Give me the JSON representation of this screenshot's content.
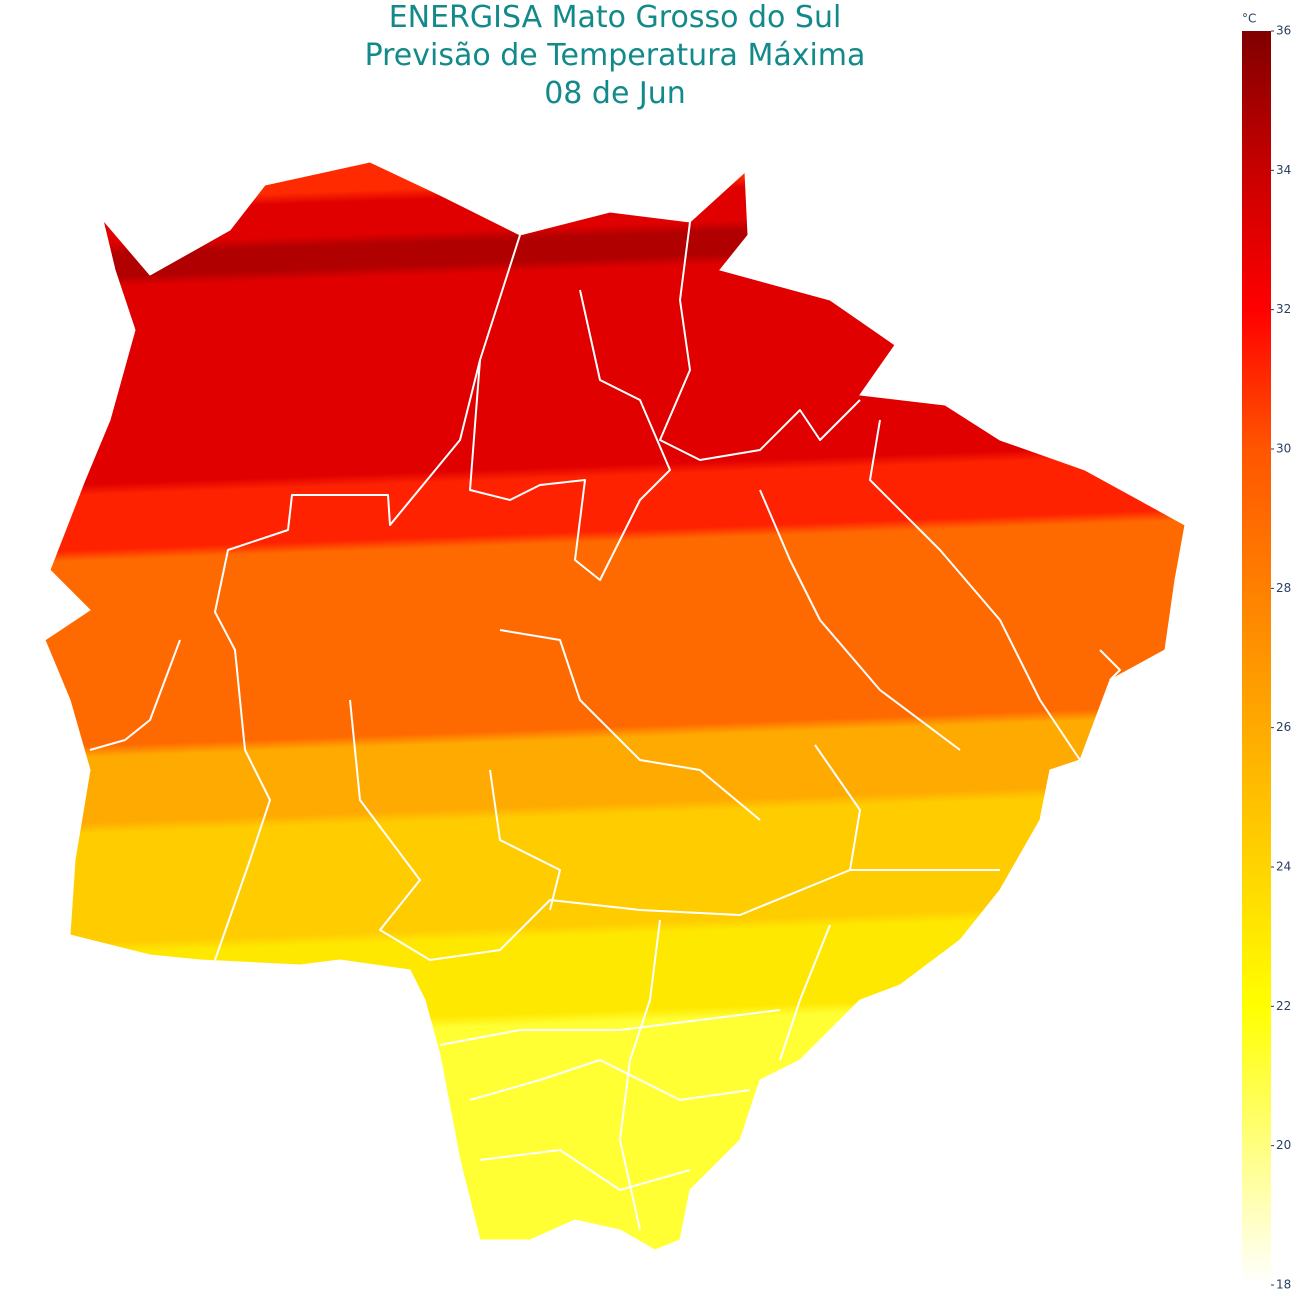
{
  "header": {
    "title_lines": [
      "ENERGISA Mato Grosso do Sul",
      "Previsão de Temperatura Máxima",
      "08 de Jun"
    ]
  },
  "colorbar": {
    "unit": "°C",
    "range": [
      18,
      36
    ],
    "ticks": [
      18,
      20,
      22,
      24,
      26,
      28,
      30,
      32,
      34,
      36
    ],
    "colorscale": [
      {
        "value": 18,
        "color": "#ffffff"
      },
      {
        "value": 22,
        "color": "#ffff00"
      },
      {
        "value": 26,
        "color": "#ffaa00"
      },
      {
        "value": 30,
        "color": "#ff5500"
      },
      {
        "value": 32,
        "color": "#ff0000"
      },
      {
        "value": 34,
        "color": "#c80000"
      },
      {
        "value": 36,
        "color": "#800000"
      }
    ]
  }
}
